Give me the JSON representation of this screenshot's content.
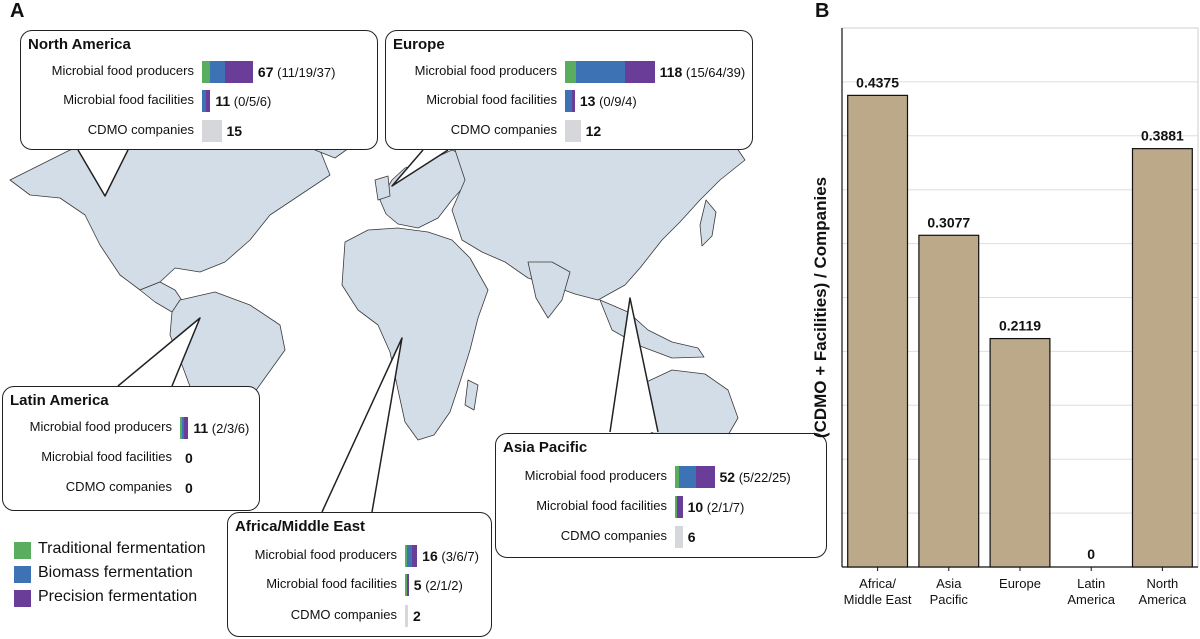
{
  "panel_a": {
    "letter": "A",
    "legend": [
      {
        "label": "Traditional fermentation",
        "color": "#5aac5e"
      },
      {
        "label": "Biomass fermentation",
        "color": "#3d72b4"
      },
      {
        "label": "Precision fermentation",
        "color": "#6a3d98"
      }
    ],
    "row_labels": {
      "producers": "Microbial food producers",
      "facilities": "Microbial food facilities",
      "cdmo": "CDMO companies"
    },
    "regions": [
      {
        "name": "North America",
        "producers": {
          "total": "67",
          "breakdown": "(11/19/37)",
          "parts": [
            11,
            19,
            37
          ]
        },
        "facilities": {
          "total": "11",
          "breakdown": "(0/5/6)",
          "parts": [
            0,
            5,
            6
          ]
        },
        "cdmo": {
          "total": "15",
          "value": 15
        }
      },
      {
        "name": "Europe",
        "producers": {
          "total": "118",
          "breakdown": "(15/64/39)",
          "parts": [
            15,
            64,
            39
          ]
        },
        "facilities": {
          "total": "13",
          "breakdown": "(0/9/4)",
          "parts": [
            0,
            9,
            4
          ]
        },
        "cdmo": {
          "total": "12",
          "value": 12
        }
      },
      {
        "name": "Latin America",
        "producers": {
          "total": "11",
          "breakdown": "(2/3/6)",
          "parts": [
            2,
            3,
            6
          ]
        },
        "facilities": {
          "total": "0",
          "breakdown": "",
          "parts": [
            0,
            0,
            0
          ]
        },
        "cdmo": {
          "total": "0",
          "value": 0
        }
      },
      {
        "name": "Africa/Middle East",
        "producers": {
          "total": "16",
          "breakdown": "(3/6/7)",
          "parts": [
            3,
            6,
            7
          ]
        },
        "facilities": {
          "total": "5",
          "breakdown": "(2/1/2)",
          "parts": [
            2,
            1,
            2
          ]
        },
        "cdmo": {
          "total": "2",
          "value": 2
        }
      },
      {
        "name": "Asia Pacific",
        "producers": {
          "total": "52",
          "breakdown": "(5/22/25)",
          "parts": [
            5,
            22,
            25
          ]
        },
        "facilities": {
          "total": "10",
          "breakdown": "(2/1/7)",
          "parts": [
            2,
            1,
            7
          ]
        },
        "cdmo": {
          "total": "6",
          "value": 6
        }
      }
    ]
  },
  "panel_b": {
    "letter": "B"
  },
  "chart_data": {
    "type": "bar",
    "categories": [
      "Africa/\nMiddle East",
      "Asia\nPacific",
      "Europe",
      "Latin\nAmerica",
      "North\nAmerica"
    ],
    "values": [
      0.4375,
      0.3077,
      0.2119,
      0,
      0.3881
    ],
    "value_labels": [
      "0.4375",
      "0.3077",
      "0.2119",
      "0",
      "0.3881"
    ],
    "xlabel": "",
    "ylabel": "(CDMO + Facilities) / Companies",
    "ylim": [
      0,
      0.5
    ],
    "grid": true,
    "bar_color": "#bca98a"
  }
}
